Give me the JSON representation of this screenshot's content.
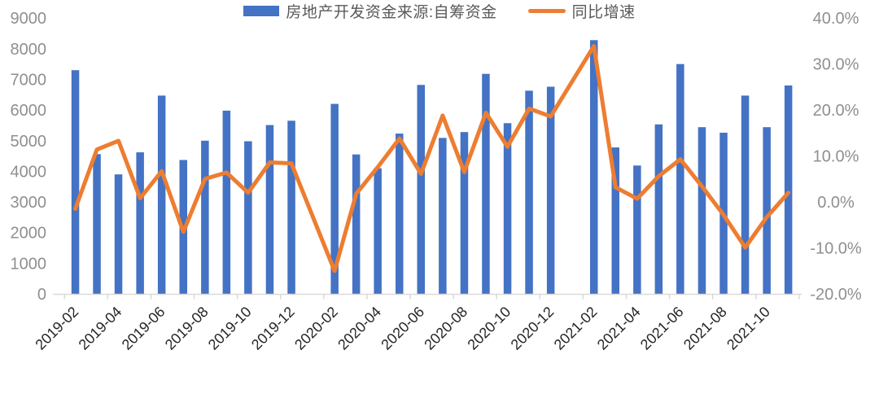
{
  "chart_data": {
    "type": "bar",
    "subtype": "combo-bar-line",
    "title": "",
    "categories": [
      "2019-02",
      "2019-03",
      "2019-04",
      "2019-05",
      "2019-06",
      "2019-07",
      "2019-08",
      "2019-09",
      "2019-10",
      "2019-11",
      "2019-12",
      "2020-01",
      "2020-02",
      "2020-03",
      "2020-04",
      "2020-05",
      "2020-06",
      "2020-07",
      "2020-08",
      "2020-09",
      "2020-10",
      "2020-11",
      "2020-12",
      "2021-01",
      "2021-02",
      "2021-03",
      "2021-04",
      "2021-05",
      "2021-06",
      "2021-07",
      "2021-08",
      "2021-09",
      "2021-10",
      "2021-11"
    ],
    "series": [
      {
        "name": "房地产开发资金来源:自筹资金",
        "type": "bar",
        "axis": "left",
        "values": [
          7300,
          4560,
          3900,
          4620,
          6470,
          4370,
          5000,
          5980,
          4980,
          5510,
          5650,
          null,
          6200,
          4550,
          4100,
          5230,
          6820,
          5090,
          5280,
          7180,
          5570,
          6630,
          6760,
          null,
          8280,
          4780,
          4190,
          5530,
          7500,
          5440,
          5260,
          6470,
          5440,
          6800
        ]
      },
      {
        "name": "同比增速",
        "type": "line",
        "axis": "right",
        "values": [
          -1.5,
          11.4,
          13.3,
          0.8,
          6.7,
          -6.5,
          5.0,
          6.4,
          2.0,
          8.6,
          8.4,
          null,
          -15.0,
          1.8,
          7.6,
          13.8,
          6.1,
          18.8,
          6.5,
          19.4,
          12.0,
          20.3,
          18.6,
          null,
          33.9,
          3.2,
          0.7,
          5.6,
          9.3,
          3.4,
          -2.8,
          -9.9,
          -3.3,
          2.0
        ]
      }
    ],
    "left_axis": {
      "min": 0,
      "max": 9000,
      "step": 1000,
      "ticks": [
        "0",
        "1000",
        "2000",
        "3000",
        "4000",
        "5000",
        "6000",
        "7000",
        "8000",
        "9000"
      ]
    },
    "right_axis": {
      "min": -20,
      "max": 40,
      "step": 10,
      "ticks": [
        "-20.0%",
        "-10.0%",
        "0.0%",
        "10.0%",
        "20.0%",
        "30.0%",
        "40.0%"
      ]
    },
    "x_tick_labels": [
      "2019-02",
      "2019-04",
      "2019-06",
      "2019-08",
      "2019-10",
      "2019-12",
      "2020-02",
      "2020-04",
      "2020-06",
      "2020-08",
      "2020-10",
      "2020-12",
      "2021-02",
      "2021-04",
      "2021-06",
      "2021-08",
      "2021-10"
    ],
    "grid": false,
    "legend_position": "bottom"
  },
  "legend": {
    "bar_label": "房地产开发资金来源:自筹资金",
    "line_label": "同比增速"
  },
  "colors": {
    "bar": "#4472C4",
    "line": "#ED7D31",
    "axis_line": "#D9D9D9",
    "y_label_text": "#8F8F8F",
    "x_label_text": "#262626",
    "legend_text": "#595959"
  }
}
